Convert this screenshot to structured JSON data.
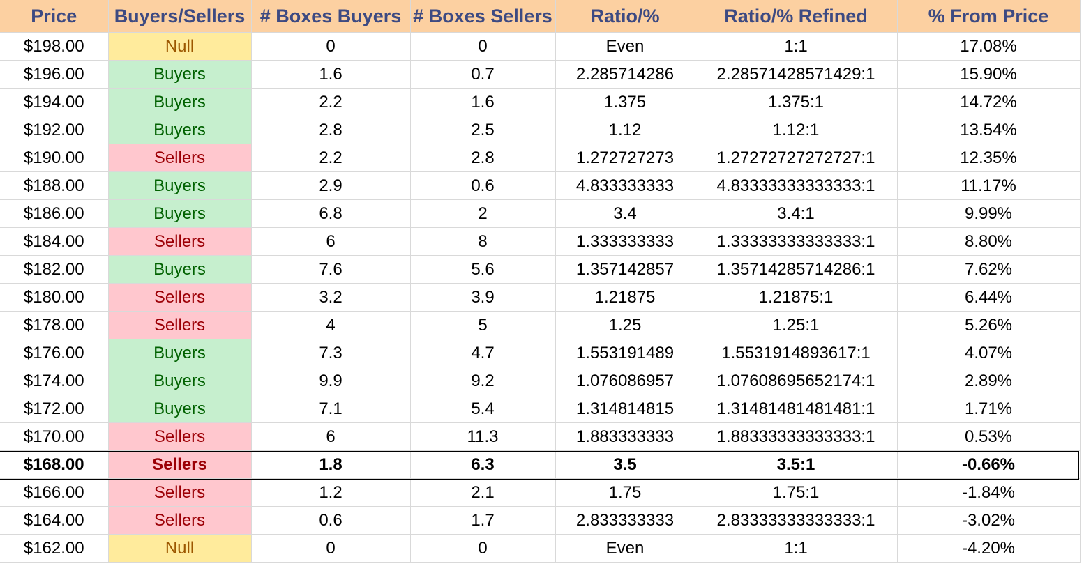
{
  "headers": [
    "Price",
    "Buyers/Sellers",
    "# Boxes Buyers",
    "# Boxes Sellers",
    "Ratio/%",
    "Ratio/% Refined",
    "% From Price"
  ],
  "rows": [
    {
      "price": "$198.00",
      "side": "Null",
      "buyers": "0",
      "sellers": "0",
      "ratio": "Even",
      "refined": "1:1",
      "from_price": "17.08%"
    },
    {
      "price": "$196.00",
      "side": "Buyers",
      "buyers": "1.6",
      "sellers": "0.7",
      "ratio": "2.285714286",
      "refined": "2.28571428571429:1",
      "from_price": "15.90%"
    },
    {
      "price": "$194.00",
      "side": "Buyers",
      "buyers": "2.2",
      "sellers": "1.6",
      "ratio": "1.375",
      "refined": "1.375:1",
      "from_price": "14.72%"
    },
    {
      "price": "$192.00",
      "side": "Buyers",
      "buyers": "2.8",
      "sellers": "2.5",
      "ratio": "1.12",
      "refined": "1.12:1",
      "from_price": "13.54%"
    },
    {
      "price": "$190.00",
      "side": "Sellers",
      "buyers": "2.2",
      "sellers": "2.8",
      "ratio": "1.272727273",
      "refined": "1.27272727272727:1",
      "from_price": "12.35%"
    },
    {
      "price": "$188.00",
      "side": "Buyers",
      "buyers": "2.9",
      "sellers": "0.6",
      "ratio": "4.833333333",
      "refined": "4.83333333333333:1",
      "from_price": "11.17%"
    },
    {
      "price": "$186.00",
      "side": "Buyers",
      "buyers": "6.8",
      "sellers": "2",
      "ratio": "3.4",
      "refined": "3.4:1",
      "from_price": "9.99%"
    },
    {
      "price": "$184.00",
      "side": "Sellers",
      "buyers": "6",
      "sellers": "8",
      "ratio": "1.333333333",
      "refined": "1.33333333333333:1",
      "from_price": "8.80%"
    },
    {
      "price": "$182.00",
      "side": "Buyers",
      "buyers": "7.6",
      "sellers": "5.6",
      "ratio": "1.357142857",
      "refined": "1.35714285714286:1",
      "from_price": "7.62%"
    },
    {
      "price": "$180.00",
      "side": "Sellers",
      "buyers": "3.2",
      "sellers": "3.9",
      "ratio": "1.21875",
      "refined": "1.21875:1",
      "from_price": "6.44%"
    },
    {
      "price": "$178.00",
      "side": "Sellers",
      "buyers": "4",
      "sellers": "5",
      "ratio": "1.25",
      "refined": "1.25:1",
      "from_price": "5.26%"
    },
    {
      "price": "$176.00",
      "side": "Buyers",
      "buyers": "7.3",
      "sellers": "4.7",
      "ratio": "1.553191489",
      "refined": "1.5531914893617:1",
      "from_price": "4.07%"
    },
    {
      "price": "$174.00",
      "side": "Buyers",
      "buyers": "9.9",
      "sellers": "9.2",
      "ratio": "1.076086957",
      "refined": "1.07608695652174:1",
      "from_price": "2.89%"
    },
    {
      "price": "$172.00",
      "side": "Buyers",
      "buyers": "7.1",
      "sellers": "5.4",
      "ratio": "1.314814815",
      "refined": "1.31481481481481:1",
      "from_price": "1.71%"
    },
    {
      "price": "$170.00",
      "side": "Sellers",
      "buyers": "6",
      "sellers": "11.3",
      "ratio": "1.883333333",
      "refined": "1.88333333333333:1",
      "from_price": "0.53%"
    },
    {
      "price": "$168.00",
      "side": "Sellers",
      "buyers": "1.8",
      "sellers": "6.3",
      "ratio": "3.5",
      "refined": "3.5:1",
      "from_price": "-0.66%",
      "current": true
    },
    {
      "price": "$166.00",
      "side": "Sellers",
      "buyers": "1.2",
      "sellers": "2.1",
      "ratio": "1.75",
      "refined": "1.75:1",
      "from_price": "-1.84%"
    },
    {
      "price": "$164.00",
      "side": "Sellers",
      "buyers": "0.6",
      "sellers": "1.7",
      "ratio": "2.833333333",
      "refined": "2.83333333333333:1",
      "from_price": "-3.02%"
    },
    {
      "price": "$162.00",
      "side": "Null",
      "buyers": "0",
      "sellers": "0",
      "ratio": "Even",
      "refined": "1:1",
      "from_price": "-4.20%"
    }
  ],
  "colors": {
    "header_bg": "#fcd0a1",
    "header_text": "#3d4a82",
    "buyers_bg": "#c6efce",
    "buyers_text": "#006100",
    "sellers_bg": "#ffc7ce",
    "sellers_text": "#9c0006",
    "null_bg": "#ffeb9c",
    "null_text": "#9c5700"
  }
}
